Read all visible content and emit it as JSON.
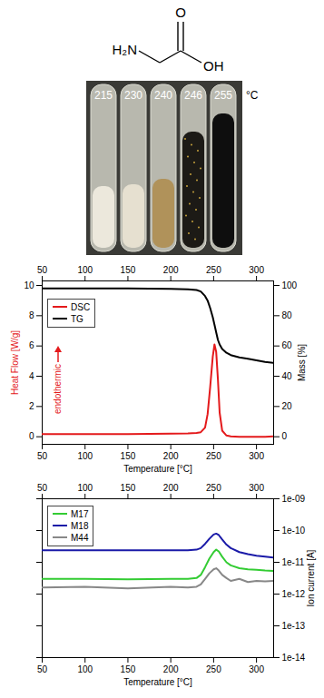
{
  "structure": {
    "atoms": [
      "H₂N",
      "O",
      "OH"
    ]
  },
  "photo": {
    "labels": [
      215,
      230,
      240,
      246,
      255
    ],
    "unit": "°C"
  },
  "chart_data": [
    {
      "type": "line",
      "xlabel": "Temperature [°C]",
      "ylabel": "Heat Flow [W/g]",
      "y2label": "Mass [%]",
      "annotation": "endothermic",
      "xlim": [
        50,
        320
      ],
      "xticks": [
        50,
        100,
        150,
        200,
        250,
        300
      ],
      "ylim": [
        -0.5,
        10.3
      ],
      "yticks": [
        0,
        2,
        4,
        6,
        8,
        10
      ],
      "y2lim": [
        -5,
        103
      ],
      "y2ticks": [
        0,
        20,
        40,
        60,
        80,
        100
      ],
      "legend": "top-left",
      "x": [
        50,
        100,
        150,
        200,
        220,
        230,
        235,
        240,
        243,
        246,
        249,
        251,
        253,
        255,
        257,
        260,
        265,
        270,
        280,
        290,
        300,
        310,
        320
      ],
      "series": [
        {
          "name": "DSC",
          "color": "#e41a1c",
          "values": [
            0.18,
            0.18,
            0.18,
            0.2,
            0.22,
            0.25,
            0.3,
            0.6,
            1.5,
            3.3,
            5.3,
            6.1,
            5.6,
            3.8,
            1.6,
            0.4,
            0.08,
            0.02,
            0,
            0,
            0,
            0,
            0.02
          ]
        },
        {
          "name": "TG",
          "color": "#000000",
          "axis": "y2",
          "values": [
            98,
            98,
            98,
            97.8,
            97.5,
            97,
            96,
            93,
            90,
            85,
            79,
            74,
            69,
            64,
            61,
            58,
            55.5,
            54,
            52.5,
            51.5,
            50.5,
            49.5,
            48.8
          ]
        }
      ]
    },
    {
      "type": "line",
      "xlabel": "Temperature [°C]",
      "ylabel": "Ion current [A]",
      "log": "y",
      "xlim": [
        50,
        320
      ],
      "xticks": [
        50,
        100,
        150,
        200,
        250,
        300
      ],
      "ylim": [
        1e-14,
        1e-09
      ],
      "yticks": [
        {
          "value": 1e-09,
          "label": "1e-09"
        },
        {
          "value": 1e-10,
          "label": "1e-10"
        },
        {
          "value": 1e-11,
          "label": "1e-11"
        },
        {
          "value": 1e-12,
          "label": "1e-12"
        },
        {
          "value": 1e-13,
          "label": "1e-13"
        },
        {
          "value": 1e-14,
          "label": "1e-14"
        }
      ],
      "legend": "top-left",
      "x": [
        50,
        100,
        150,
        200,
        220,
        230,
        235,
        240,
        245,
        250,
        253,
        256,
        260,
        265,
        270,
        280,
        290,
        300,
        310,
        320
      ],
      "series": [
        {
          "name": "M17",
          "color": "#33cc33",
          "values": [
            3e-12,
            3e-12,
            2.9e-12,
            3e-12,
            3e-12,
            3.2e-12,
            4e-12,
            7e-12,
            1.3e-11,
            2.1e-11,
            2.5e-11,
            2.2e-11,
            1.5e-11,
            1e-11,
            8e-12,
            6.5e-12,
            6e-12,
            5.8e-12,
            5.5e-12,
            5.3e-12
          ]
        },
        {
          "name": "M18",
          "color": "#1a1aa8",
          "values": [
            2.4e-11,
            2.4e-11,
            2.4e-11,
            2.4e-11,
            2.4e-11,
            2.5e-11,
            2.8e-11,
            3.8e-11,
            5.5e-11,
            7.5e-11,
            8e-11,
            7.2e-11,
            5.2e-11,
            3.6e-11,
            2.8e-11,
            2.1e-11,
            1.8e-11,
            1.6e-11,
            1.5e-11,
            1.4e-11
          ]
        },
        {
          "name": "M44",
          "color": "#888888",
          "values": [
            1.6e-12,
            1.7e-12,
            1.5e-12,
            1.7e-12,
            1.6e-12,
            1.7e-12,
            2e-12,
            3e-12,
            4.5e-12,
            6e-12,
            6.5e-12,
            5.5e-12,
            4e-12,
            3.2e-12,
            2.6e-12,
            3e-12,
            2.4e-12,
            2.6e-12,
            2.5e-12,
            2.6e-12
          ]
        }
      ]
    }
  ]
}
